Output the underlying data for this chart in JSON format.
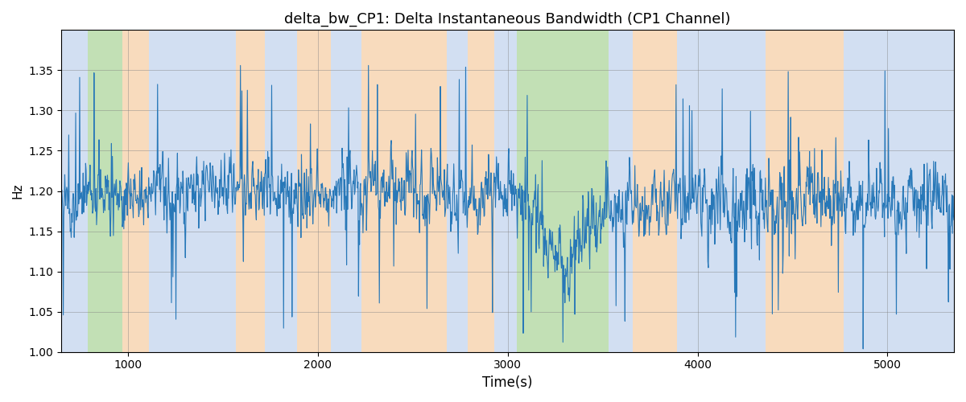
{
  "title": "delta_bw_CP1: Delta Instantaneous Bandwidth (CP1 Channel)",
  "xlabel": "Time(s)",
  "ylabel": "Hz",
  "ylim": [
    1.0,
    1.4
  ],
  "xlim": [
    650,
    5350
  ],
  "yticks": [
    1.0,
    1.05,
    1.1,
    1.15,
    1.2,
    1.25,
    1.3,
    1.35
  ],
  "xticks": [
    1000,
    2000,
    3000,
    4000,
    5000
  ],
  "background_color": "#ffffff",
  "line_color": "#2878b8",
  "line_width": 0.8,
  "bands": [
    {
      "xmin": 650,
      "xmax": 790,
      "color": "#aec6e8",
      "alpha": 0.55
    },
    {
      "xmin": 790,
      "xmax": 970,
      "color": "#90c878",
      "alpha": 0.55
    },
    {
      "xmin": 970,
      "xmax": 1110,
      "color": "#f5c89a",
      "alpha": 0.65
    },
    {
      "xmin": 1110,
      "xmax": 1570,
      "color": "#aec6e8",
      "alpha": 0.55
    },
    {
      "xmin": 1570,
      "xmax": 1720,
      "color": "#f5c89a",
      "alpha": 0.65
    },
    {
      "xmin": 1720,
      "xmax": 1890,
      "color": "#aec6e8",
      "alpha": 0.55
    },
    {
      "xmin": 1890,
      "xmax": 2070,
      "color": "#f5c89a",
      "alpha": 0.65
    },
    {
      "xmin": 2070,
      "xmax": 2230,
      "color": "#aec6e8",
      "alpha": 0.55
    },
    {
      "xmin": 2230,
      "xmax": 2680,
      "color": "#f5c89a",
      "alpha": 0.65
    },
    {
      "xmin": 2680,
      "xmax": 2790,
      "color": "#aec6e8",
      "alpha": 0.55
    },
    {
      "xmin": 2790,
      "xmax": 2930,
      "color": "#f5c89a",
      "alpha": 0.65
    },
    {
      "xmin": 2930,
      "xmax": 3050,
      "color": "#aec6e8",
      "alpha": 0.55
    },
    {
      "xmin": 3050,
      "xmax": 3530,
      "color": "#90c878",
      "alpha": 0.55
    },
    {
      "xmin": 3530,
      "xmax": 3660,
      "color": "#aec6e8",
      "alpha": 0.55
    },
    {
      "xmin": 3660,
      "xmax": 3890,
      "color": "#f5c89a",
      "alpha": 0.65
    },
    {
      "xmin": 3890,
      "xmax": 4360,
      "color": "#aec6e8",
      "alpha": 0.55
    },
    {
      "xmin": 4360,
      "xmax": 4770,
      "color": "#f5c89a",
      "alpha": 0.65
    },
    {
      "xmin": 4770,
      "xmax": 5350,
      "color": "#aec6e8",
      "alpha": 0.55
    }
  ],
  "figsize": [
    12.0,
    5.0
  ],
  "dpi": 100
}
